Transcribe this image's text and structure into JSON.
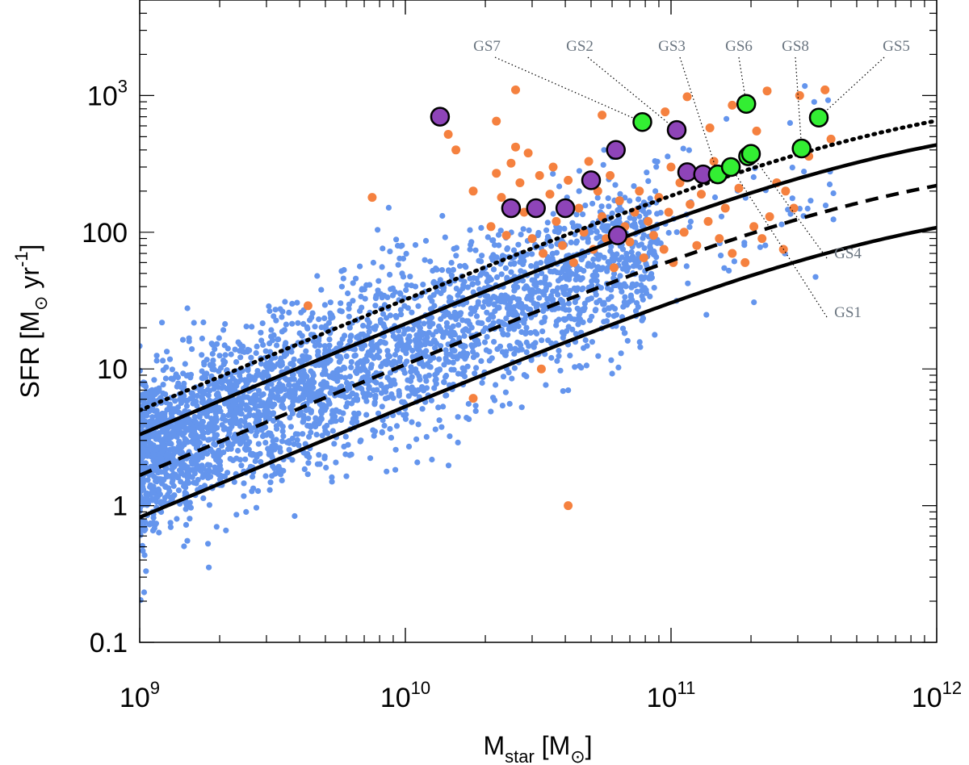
{
  "chart_data": {
    "type": "scatter",
    "log_x": true,
    "log_y": true,
    "xlim": [
      1000000000.0,
      1000000000000.0
    ],
    "ylim": [
      0.1,
      5000
    ],
    "grid": false,
    "xlabel": {
      "main": "M",
      "sub": "star",
      "rest": " [M",
      "sub2": "⊙",
      "end": "]"
    },
    "ylabel": {
      "main": "SFR [M",
      "sub": "⊙",
      "mid": " yr",
      "sup": "-1",
      "end": "]"
    },
    "x_ticks": [
      {
        "value": 1000000000.0,
        "base": "10",
        "exp": "9"
      },
      {
        "value": 10000000000.0,
        "base": "10",
        "exp": "10"
      },
      {
        "value": 100000000000.0,
        "base": "10",
        "exp": "11"
      },
      {
        "value": 1000000000000.0,
        "base": "10",
        "exp": "12"
      }
    ],
    "y_ticks": [
      {
        "value": 0.1,
        "label": "0.1"
      },
      {
        "value": 1,
        "label": "1"
      },
      {
        "value": 10,
        "label": "10"
      },
      {
        "value": 100,
        "label": "100"
      },
      {
        "value": 1000,
        "base": "10",
        "exp": "3"
      }
    ],
    "colors": {
      "background_points": "#6495ED",
      "orange_points": "#F5813F",
      "purple_points": "#8E44B8",
      "green_points": "#33EE33",
      "annotation": "#6a7580"
    },
    "main_sequence": {
      "description_curves": [
        {
          "style": "dotted",
          "factor": 2.0
        },
        {
          "style": "solid",
          "factor": 1.33
        },
        {
          "style": "dashed",
          "factor": 0.67
        },
        {
          "style": "solid",
          "factor": 0.33
        }
      ]
    },
    "purple_points": [
      [
        13500000000.0,
        700
      ],
      [
        25000000000.0,
        150
      ],
      [
        31000000000.0,
        150
      ],
      [
        40000000000.0,
        150
      ],
      [
        50000000000.0,
        240
      ],
      [
        62000000000.0,
        400
      ],
      [
        63000000000.0,
        95
      ],
      [
        105000000000.0,
        560
      ],
      [
        115000000000.0,
        275
      ],
      [
        132000000000.0,
        265
      ]
    ],
    "green_points": [
      [
        78000000000.0,
        640
      ],
      [
        150000000000.0,
        265
      ],
      [
        168000000000.0,
        300
      ],
      [
        192000000000.0,
        870
      ],
      [
        195000000000.0,
        360
      ],
      [
        200000000000.0,
        375
      ],
      [
        310000000000.0,
        410
      ],
      [
        360000000000.0,
        690
      ]
    ],
    "orange_points": [
      [
        14500000000.0,
        520
      ],
      [
        15500000000.0,
        400
      ],
      [
        18000000000.0,
        200
      ],
      [
        21000000000.0,
        110
      ],
      [
        22000000000.0,
        270
      ],
      [
        23000000000.0,
        180
      ],
      [
        24000000000.0,
        95
      ],
      [
        25000000000.0,
        320
      ],
      [
        26000000000.0,
        420
      ],
      [
        27000000000.0,
        230
      ],
      [
        28000000000.0,
        140
      ],
      [
        29000000000.0,
        380
      ],
      [
        30000000000.0,
        90
      ],
      [
        32000000000.0,
        260
      ],
      [
        33000000000.0,
        70
      ],
      [
        35000000000.0,
        190
      ],
      [
        36000000000.0,
        300
      ],
      [
        37000000000.0,
        120
      ],
      [
        39000000000.0,
        80
      ],
      [
        41000000000.0,
        240
      ],
      [
        43000000000.0,
        60
      ],
      [
        45000000000.0,
        150
      ],
      [
        47000000000.0,
        100
      ],
      [
        49000000000.0,
        330
      ],
      [
        51000000000.0,
        75
      ],
      [
        53000000000.0,
        200
      ],
      [
        55000000000.0,
        130
      ],
      [
        57000000000.0,
        90
      ],
      [
        59000000000.0,
        260
      ],
      [
        61000000000.0,
        55
      ],
      [
        64000000000.0,
        170
      ],
      [
        67000000000.0,
        110
      ],
      [
        70000000000.0,
        85
      ],
      [
        73000000000.0,
        140
      ],
      [
        76000000000.0,
        200
      ],
      [
        79000000000.0,
        65
      ],
      [
        82000000000.0,
        120
      ],
      [
        86000000000.0,
        95
      ],
      [
        90000000000.0,
        180
      ],
      [
        94000000000.0,
        75
      ],
      [
        98000000000.0,
        140
      ],
      [
        102000000000.0,
        60
      ],
      [
        108000000000.0,
        230
      ],
      [
        112000000000.0,
        100
      ],
      [
        118000000000.0,
        160
      ],
      [
        125000000000.0,
        80
      ],
      [
        130000000000.0,
        190
      ],
      [
        138000000000.0,
        120
      ],
      [
        145000000000.0,
        330
      ],
      [
        152000000000.0,
        90
      ],
      [
        160000000000.0,
        150
      ],
      [
        170000000000.0,
        70
      ],
      [
        180000000000.0,
        210
      ],
      [
        190000000000.0,
        60
      ],
      [
        205000000000.0,
        110
      ],
      [
        220000000000.0,
        90
      ],
      [
        235000000000.0,
        130
      ],
      [
        250000000000.0,
        230
      ],
      [
        265000000000.0,
        75
      ],
      [
        290000000000.0,
        150
      ],
      [
        330000000000.0,
        360
      ],
      [
        380000000000.0,
        1100
      ],
      [
        400000000000.0,
        480
      ],
      [
        305000000000.0,
        1000
      ],
      [
        230000000000.0,
        1080
      ],
      [
        170000000000.0,
        850
      ],
      [
        140000000000.0,
        580
      ],
      [
        95000000000.0,
        760
      ],
      [
        115000000000.0,
        980
      ],
      [
        26000000000.0,
        1100
      ],
      [
        4300000000.0,
        29
      ],
      [
        7500000000.0,
        180
      ],
      [
        32500000000.0,
        10
      ],
      [
        18000000000.0,
        6.1
      ],
      [
        41000000000.0,
        1.0
      ],
      [
        22000000000.0,
        650
      ],
      [
        55000000000.0,
        720
      ],
      [
        100000000000.0,
        300
      ],
      [
        210000000000.0,
        550
      ],
      [
        270000000000.0,
        200
      ]
    ],
    "annotations": [
      {
        "label": "GS7"
      },
      {
        "label": "GS2"
      },
      {
        "label": "GS3"
      },
      {
        "label": "GS6"
      },
      {
        "label": "GS8"
      },
      {
        "label": "GS5"
      },
      {
        "label": "GS4"
      },
      {
        "label": "GS1"
      }
    ]
  }
}
